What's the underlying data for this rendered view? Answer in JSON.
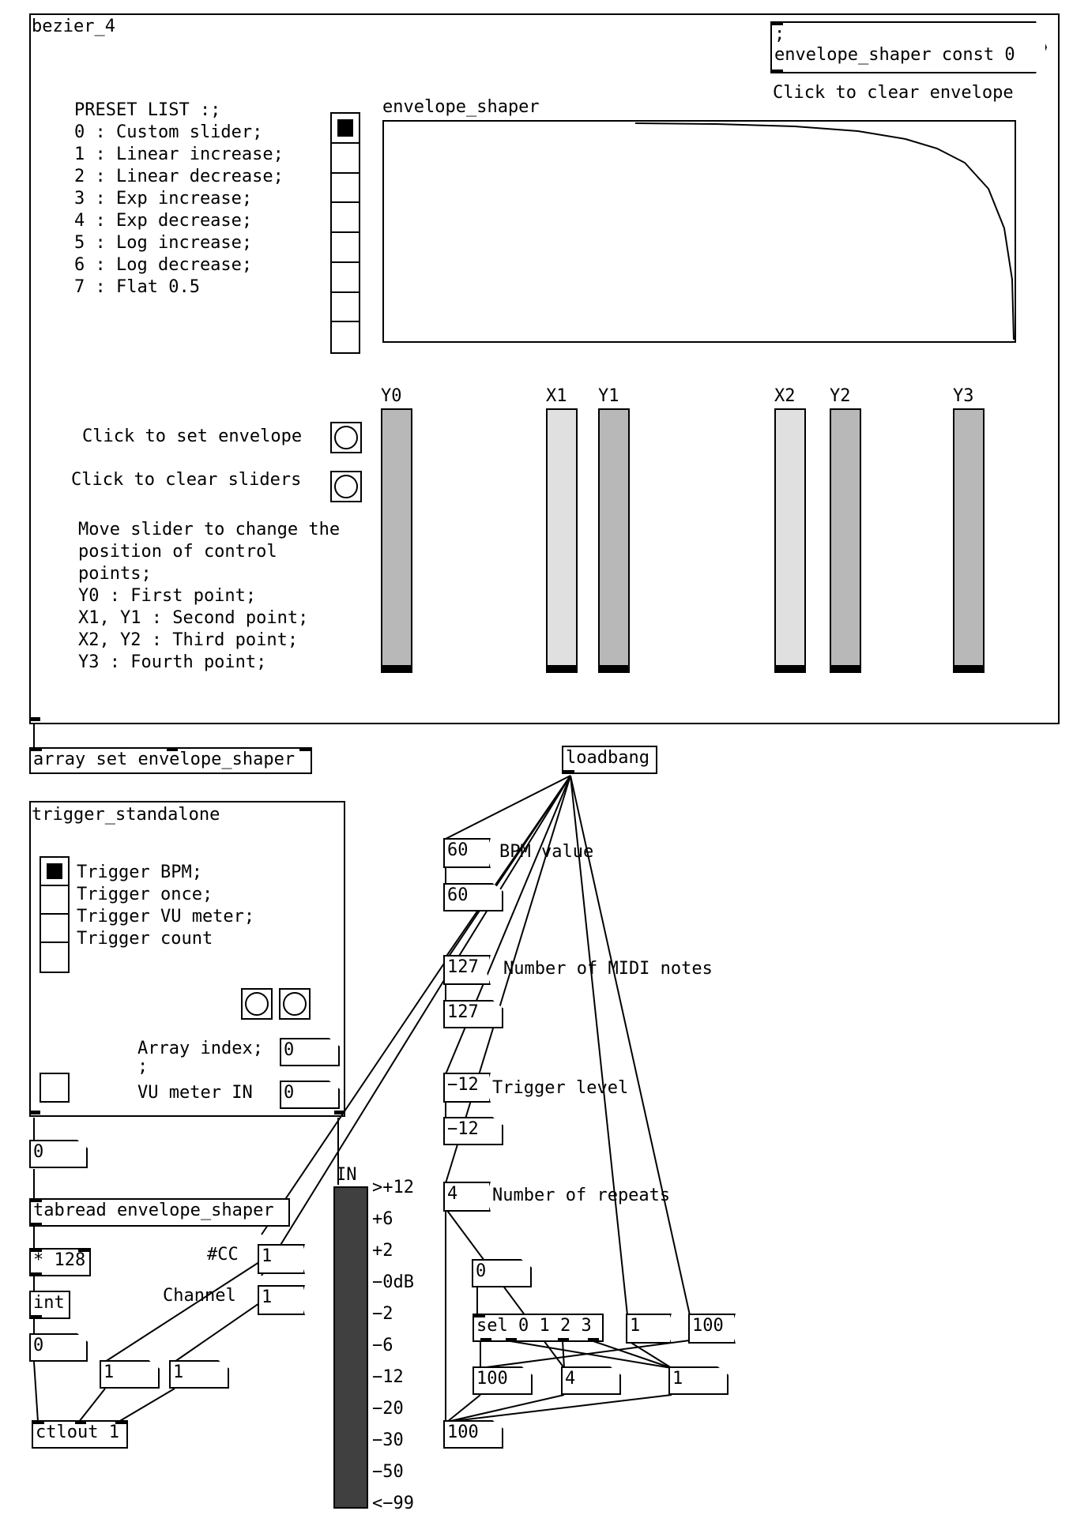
{
  "bezier": {
    "title": "bezier_4",
    "clear_msg_line1": ";",
    "clear_msg_line2": "envelope_shaper const 0",
    "clear_envelope_label": "Click to clear envelope",
    "array_name": "envelope_shaper",
    "preset_list": [
      "PRESET LIST :;",
      "0 : Custom slider;",
      "1 : Linear increase;",
      "2 : Linear decrease;",
      "3 : Exp increase;",
      "4 : Exp decrease;",
      "5 : Log increase;",
      "6 : Log decrease;",
      "7 : Flat 0.5"
    ],
    "preset_radio": {
      "count": 8,
      "selected": 0
    },
    "set_envelope_label": "Click to set envelope",
    "clear_sliders_label": "Click to clear sliders",
    "help_text": [
      "Move slider to change the",
      "position of control",
      "points;",
      "Y0 : First point;",
      "X1, Y1 : Second point;",
      "X2, Y2 : Third point;",
      "Y3 : Fourth point;"
    ],
    "sliders": [
      {
        "label": "Y0",
        "color": "#b8b8b8"
      },
      {
        "label": "X1",
        "color": "#e0e0e0"
      },
      {
        "label": "Y1",
        "color": "#b8b8b8"
      },
      {
        "label": "X2",
        "color": "#e0e0e0"
      },
      {
        "label": "Y2",
        "color": "#b8b8b8"
      },
      {
        "label": "Y3",
        "color": "#b8b8b8"
      }
    ]
  },
  "array_set": "array set envelope_shaper",
  "loadbang": "loadbang",
  "trigger": {
    "title": "trigger_standalone",
    "options": [
      "Trigger BPM;",
      "Trigger once;",
      "Trigger VU meter;",
      "Trigger count"
    ],
    "radio": {
      "count": 4,
      "selected": 0
    },
    "array_index_label": "Array index;",
    "semicolon": ";",
    "vu_in_label": "VU meter IN",
    "array_index_value": "0",
    "vu_in_value": "0"
  },
  "chain": {
    "number0": "0",
    "tabread": "tabread envelope_shaper",
    "mult": "* 128",
    "int": "int",
    "number1": "0",
    "cc_label": "#CC",
    "cc_value": "1",
    "channel_label": "Channel",
    "channel_value": "1",
    "num_cc": "1",
    "num_channel": "1",
    "ctlout": "ctlout 1"
  },
  "vu": {
    "label": "IN",
    "scale": [
      ">+12",
      "+6",
      "+2",
      "−0dB",
      "−2",
      "−6",
      "−12",
      "−20",
      "−30",
      "−50",
      "<−99"
    ]
  },
  "settings": {
    "bpm_msg": "60",
    "bpm_label": "BPM value",
    "bpm_num": "60",
    "midi_msg": "127",
    "midi_label": "Number of MIDI notes",
    "midi_num": "127",
    "trig_msg": "−12",
    "trig_label": "Trigger level",
    "trig_num": "−12",
    "rep_msg": "4",
    "rep_label": "Number of repeats",
    "num_zero": "0",
    "sel": "sel 0 1 2 3",
    "msg_one": "1",
    "msg_hundred": "100",
    "num_100a": "100",
    "num_4": "4",
    "num_1": "1",
    "num_100b": "100"
  }
}
